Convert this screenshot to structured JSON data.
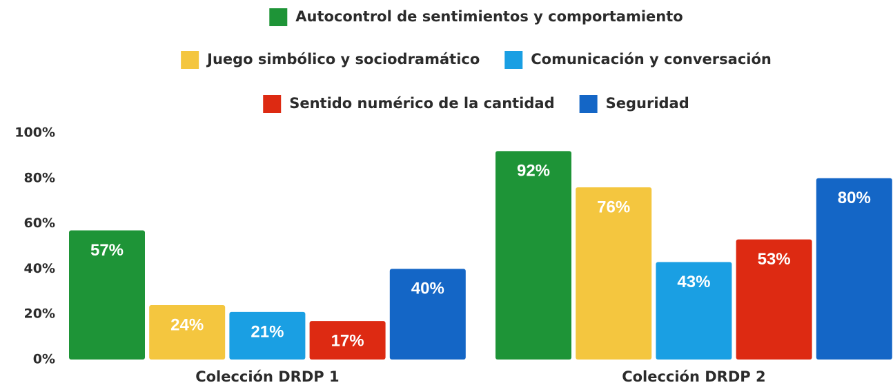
{
  "chart_data": {
    "type": "bar",
    "categories": [
      "Colección DRDP 1",
      "Colección DRDP 2"
    ],
    "series": [
      {
        "name": "Autocontrol de sentimientos y comportamiento",
        "color": "#1e9437",
        "values": [
          57,
          92
        ],
        "value_labels": [
          "57%",
          "92%"
        ]
      },
      {
        "name": "Juego simbólico y sociodramático",
        "color": "#f4c63f",
        "values": [
          24,
          76
        ],
        "value_labels": [
          "24%",
          "76%"
        ]
      },
      {
        "name": "Comunicación y conversación",
        "color": "#1a9fe3",
        "values": [
          21,
          43
        ],
        "value_labels": [
          "21%",
          "43%"
        ]
      },
      {
        "name": "Sentido numérico de la cantidad",
        "color": "#dd2a12",
        "values": [
          17,
          53
        ],
        "value_labels": [
          "17%",
          "53%"
        ]
      },
      {
        "name": "Seguridad",
        "color": "#1466c6",
        "values": [
          40,
          80
        ],
        "value_labels": [
          "40%",
          "80%"
        ]
      }
    ],
    "ylim": [
      0,
      100
    ],
    "yticks": [
      {
        "value": 0,
        "label": "0%"
      },
      {
        "value": 20,
        "label": "20%"
      },
      {
        "value": 40,
        "label": "40%"
      },
      {
        "value": 60,
        "label": "60%"
      },
      {
        "value": 80,
        "label": "80%"
      },
      {
        "value": 100,
        "label": "100%"
      }
    ],
    "legend": "top",
    "grid": false
  }
}
